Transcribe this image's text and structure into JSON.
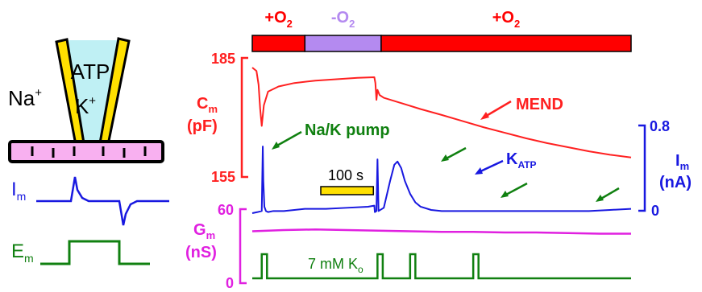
{
  "chart_data": {
    "type": "line",
    "colors": {
      "cm": "#ff2020",
      "im": "#1818e0",
      "gm": "#e020e0",
      "ko": "#108010",
      "o2_on": "#ff0000",
      "o2_off": "#b48af0",
      "scale_bar": "#ffe000"
    },
    "o2_bar": {
      "segments": [
        {
          "label_main": "+O",
          "label_sub": "2",
          "state": "on",
          "t_start": 0,
          "t_end": 100
        },
        {
          "label_main": "-O",
          "label_sub": "2",
          "state": "off",
          "t_start": 100,
          "t_end": 245
        },
        {
          "label_main": "+O",
          "label_sub": "2",
          "state": "on",
          "t_start": 245,
          "t_end": 720
        }
      ]
    },
    "time_scale": {
      "label": "100 s",
      "seconds": 100
    },
    "axes": {
      "cm": {
        "label_main": "C",
        "label_sub": "m",
        "unit": "(pF)",
        "ticks": [
          "185",
          "155"
        ],
        "ylim": [
          155,
          185
        ]
      },
      "im": {
        "label_main": "I",
        "label_sub": "m",
        "unit": "(nA)",
        "ticks": [
          "0.8",
          "0"
        ],
        "ylim": [
          0,
          0.8
        ]
      },
      "gm": {
        "label_main": "G",
        "label_sub": "m",
        "unit": "(nS)",
        "ticks": [
          "60",
          "0"
        ],
        "ylim": [
          0,
          60
        ]
      }
    },
    "annotations": {
      "mend": "MEND",
      "pump": "Na/K pump",
      "katp_main": "K",
      "katp_sub": "ATP",
      "ko_main": "7 mM K",
      "ko_sub": "o"
    },
    "series": [
      {
        "key": "cm",
        "x": [
          0,
          8,
          12,
          15,
          18,
          22,
          30,
          50,
          80,
          120,
          160,
          200,
          232,
          234,
          236,
          238,
          242,
          250,
          280,
          320,
          360,
          400,
          440,
          480,
          520,
          560,
          600,
          640,
          680,
          720
        ],
        "y": [
          185,
          184,
          180,
          173,
          168,
          174,
          178,
          179.5,
          180.5,
          181.2,
          181.6,
          182,
          182.2,
          180.5,
          175.6,
          178.5,
          177,
          176.2,
          174.8,
          172.9,
          171.2,
          169.4,
          167.6,
          166,
          164.4,
          163,
          161.8,
          160.6,
          159.6,
          158.8
        ]
      },
      {
        "key": "im",
        "x": [
          0,
          10,
          18,
          20,
          21,
          23,
          26,
          30,
          40,
          60,
          80,
          100,
          140,
          180,
          220,
          232,
          233,
          236,
          238,
          240,
          250,
          262,
          270,
          276,
          283,
          290,
          300,
          310,
          320,
          340,
          360,
          400,
          440,
          480,
          520,
          560,
          600,
          640,
          680,
          720
        ],
        "y": [
          0,
          0.01,
          0.02,
          0.62,
          0.3,
          0.06,
          0.02,
          0.01,
          0.02,
          0.02,
          0.03,
          0.04,
          0.04,
          0.05,
          0.06,
          0.07,
          0.01,
          0.02,
          0.5,
          0.02,
          0.05,
          0.3,
          0.45,
          0.48,
          0.42,
          0.3,
          0.18,
          0.1,
          0.06,
          0.03,
          0.02,
          0.02,
          0.02,
          0.02,
          0.02,
          0.02,
          0.02,
          0.02,
          0.03,
          0.04
        ]
      },
      {
        "key": "gm",
        "x": [
          0,
          60,
          120,
          180,
          240,
          300,
          360,
          420,
          480,
          540,
          600,
          660,
          720
        ],
        "y": [
          43,
          44,
          44.5,
          44,
          43.5,
          43,
          42.5,
          42.5,
          42,
          42,
          41.5,
          41,
          41
        ]
      },
      {
        "key": "ko",
        "steps": [
          [
            18,
            28
          ],
          [
            238,
            248
          ],
          [
            300,
            310
          ],
          [
            420,
            430
          ]
        ]
      }
    ]
  }
}
